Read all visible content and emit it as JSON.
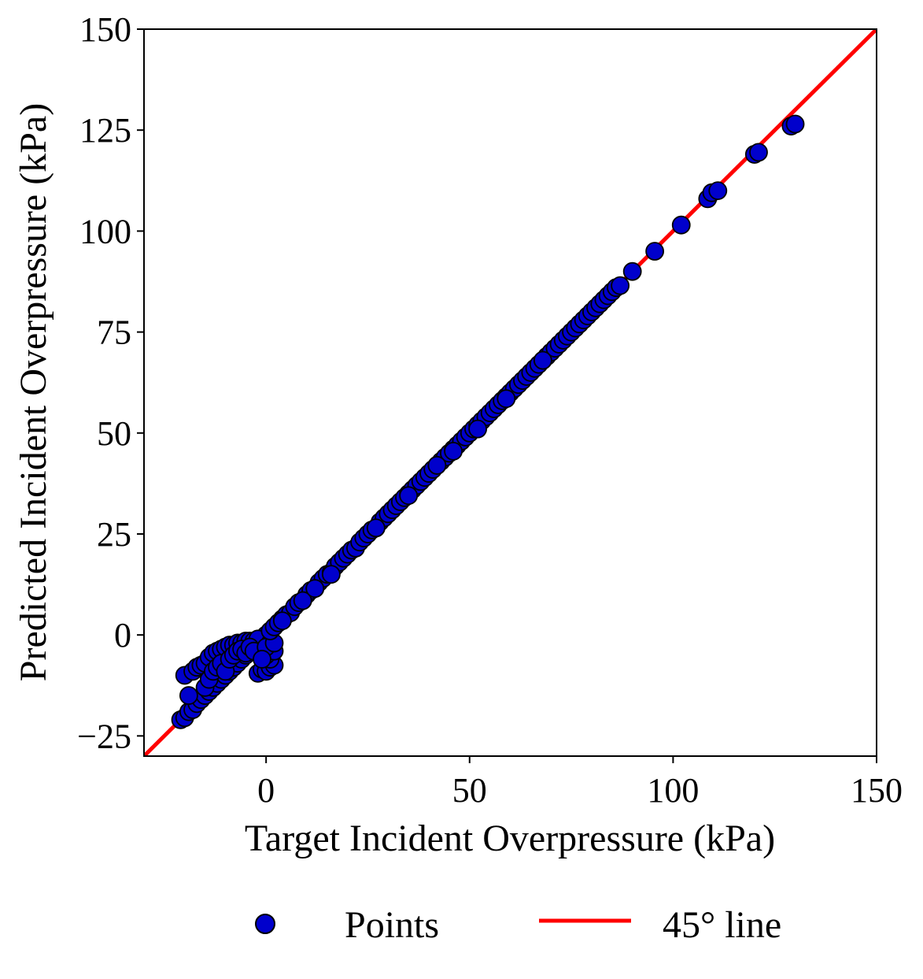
{
  "chart_data": {
    "type": "scatter",
    "xlabel": "Target Incident Overpressure (kPa)",
    "ylabel": "Predicted Incident Overpressure (kPa)",
    "xlim": [
      -30,
      150
    ],
    "ylim": [
      -30,
      150
    ],
    "xticks": [
      0,
      50,
      100,
      150
    ],
    "yticks": [
      -25,
      0,
      25,
      50,
      75,
      100,
      125,
      150
    ],
    "xtick_labels": [
      "0",
      "50",
      "100",
      "150"
    ],
    "ytick_labels": [
      "−25",
      "0",
      "25",
      "50",
      "75",
      "100",
      "125",
      "150"
    ],
    "grid": false,
    "legend": {
      "placement": "bottom-center",
      "entries": [
        "Points",
        "45° line"
      ]
    },
    "series": [
      {
        "name": "Points",
        "kind": "scatter",
        "color": "#0000cc",
        "edge_color": "#000000",
        "points": [
          [
            -21,
            -21
          ],
          [
            -20,
            -20.5
          ],
          [
            -19,
            -19
          ],
          [
            -18,
            -18.5
          ],
          [
            -17,
            -17
          ],
          [
            -16,
            -16
          ],
          [
            -15,
            -15
          ],
          [
            -14,
            -14
          ],
          [
            -13,
            -13
          ],
          [
            -12,
            -12
          ],
          [
            -11,
            -11
          ],
          [
            -10,
            -10
          ],
          [
            -9,
            -9
          ],
          [
            -8,
            -8
          ],
          [
            -7,
            -7
          ],
          [
            -6,
            -6
          ],
          [
            -5,
            -5
          ],
          [
            -4,
            -4
          ],
          [
            -3,
            -3
          ],
          [
            -2,
            -2
          ],
          [
            -1,
            -1
          ],
          [
            0,
            0
          ],
          [
            -20,
            -10
          ],
          [
            -19,
            -15
          ],
          [
            -18,
            -9
          ],
          [
            -17,
            -8
          ],
          [
            -16,
            -7.5
          ],
          [
            -15,
            -7
          ],
          [
            -14,
            -5.5
          ],
          [
            -13,
            -4.5
          ],
          [
            -12,
            -4
          ],
          [
            -11,
            -3.5
          ],
          [
            -10,
            -3
          ],
          [
            -9,
            -2.5
          ],
          [
            -8,
            -2.5
          ],
          [
            -7,
            -2
          ],
          [
            -6,
            -2
          ],
          [
            -5,
            -1.5
          ],
          [
            -4,
            -1.5
          ],
          [
            -3,
            -1.5
          ],
          [
            -2,
            -1
          ],
          [
            -15,
            -13
          ],
          [
            -14,
            -11
          ],
          [
            -13,
            -9
          ],
          [
            -12,
            -8
          ],
          [
            -11,
            -7
          ],
          [
            -10,
            -9
          ],
          [
            -9,
            -6
          ],
          [
            -8,
            -5
          ],
          [
            -7,
            -4
          ],
          [
            -6,
            -3.5
          ],
          [
            -5,
            -4.5
          ],
          [
            -4,
            -3
          ],
          [
            -3,
            -4
          ],
          [
            -2,
            -9.5
          ],
          [
            -1,
            -8.5
          ],
          [
            0,
            -9
          ],
          [
            1,
            -8
          ],
          [
            2,
            -7.5
          ],
          [
            1,
            -6
          ],
          [
            0,
            -5
          ],
          [
            1,
            -3.5
          ],
          [
            2,
            -4
          ],
          [
            1,
            -2
          ],
          [
            0,
            -3
          ],
          [
            -1,
            -6
          ],
          [
            2,
            -2
          ],
          [
            1,
            1
          ],
          [
            2,
            2
          ],
          [
            3,
            3
          ],
          [
            4,
            4
          ],
          [
            5,
            5
          ],
          [
            6,
            5.5
          ],
          [
            7,
            7
          ],
          [
            8,
            8
          ],
          [
            9,
            8.5
          ],
          [
            10,
            10
          ],
          [
            11,
            11
          ],
          [
            12,
            11.5
          ],
          [
            13,
            13
          ],
          [
            14,
            14
          ],
          [
            15,
            15
          ],
          [
            16,
            15.5
          ],
          [
            17,
            17
          ],
          [
            18,
            18
          ],
          [
            19,
            19
          ],
          [
            20,
            20
          ],
          [
            21,
            21
          ],
          [
            22,
            21.5
          ],
          [
            23,
            23
          ],
          [
            24,
            24
          ],
          [
            25,
            25
          ],
          [
            26,
            26
          ],
          [
            27,
            26.5
          ],
          [
            28,
            28
          ],
          [
            29,
            29
          ],
          [
            30,
            30
          ],
          [
            31,
            31
          ],
          [
            32,
            32
          ],
          [
            33,
            33
          ],
          [
            34,
            34
          ],
          [
            35,
            35
          ],
          [
            36,
            36
          ],
          [
            37,
            37
          ],
          [
            38,
            38
          ],
          [
            39,
            39
          ],
          [
            40,
            40
          ],
          [
            41,
            41
          ],
          [
            42,
            42
          ],
          [
            43,
            43
          ],
          [
            44,
            44
          ],
          [
            45,
            45
          ],
          [
            46,
            46
          ],
          [
            47,
            47
          ],
          [
            48,
            48
          ],
          [
            49,
            49
          ],
          [
            50,
            50
          ],
          [
            51,
            51
          ],
          [
            52,
            52
          ],
          [
            53,
            53
          ],
          [
            54,
            54
          ],
          [
            55,
            55
          ],
          [
            56,
            56
          ],
          [
            57,
            57
          ],
          [
            58,
            58
          ],
          [
            59,
            59
          ],
          [
            60,
            60
          ],
          [
            61,
            61
          ],
          [
            62,
            62
          ],
          [
            63,
            63
          ],
          [
            64,
            64
          ],
          [
            65,
            65
          ],
          [
            66,
            66
          ],
          [
            67,
            67
          ],
          [
            68,
            68
          ],
          [
            69,
            69
          ],
          [
            70,
            70
          ],
          [
            71,
            71
          ],
          [
            72,
            72
          ],
          [
            73,
            73
          ],
          [
            74,
            74
          ],
          [
            75,
            75
          ],
          [
            76,
            76
          ],
          [
            77,
            77
          ],
          [
            78,
            78
          ],
          [
            79,
            79
          ],
          [
            80,
            80
          ],
          [
            81,
            81
          ],
          [
            82,
            82
          ],
          [
            83,
            83
          ],
          [
            84,
            84
          ],
          [
            85,
            85
          ],
          [
            86,
            86
          ],
          [
            87,
            86.5
          ],
          [
            90,
            90
          ],
          [
            95.5,
            95
          ],
          [
            102,
            101.5
          ],
          [
            108.5,
            108
          ],
          [
            109.5,
            109.5
          ],
          [
            111,
            110
          ],
          [
            120,
            119
          ],
          [
            121,
            119.5
          ],
          [
            129,
            126
          ],
          [
            130,
            126.5
          ],
          [
            68,
            68
          ],
          [
            59,
            58.5
          ],
          [
            52,
            51
          ],
          [
            46,
            45.5
          ],
          [
            42,
            42
          ],
          [
            35,
            34.5
          ],
          [
            27,
            26.5
          ],
          [
            16,
            15
          ],
          [
            9,
            8.5
          ],
          [
            12,
            11.5
          ],
          [
            4,
            3.5
          ]
        ]
      },
      {
        "name": "45° line",
        "kind": "line",
        "color": "#ff0000",
        "points": [
          [
            -30,
            -30
          ],
          [
            150,
            150
          ]
        ]
      }
    ]
  }
}
